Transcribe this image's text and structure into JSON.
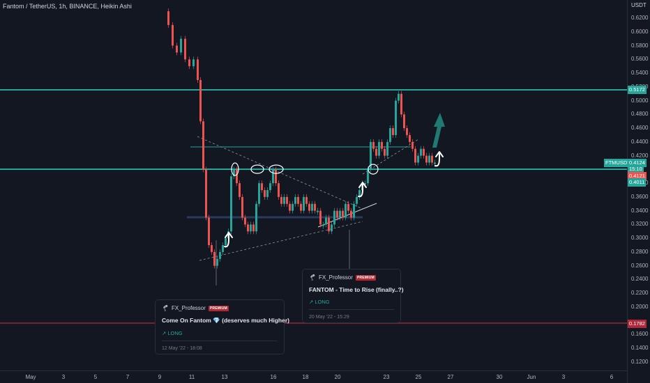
{
  "header": {
    "title": "Fantom / TetherUS, 1h, BINANCE, Heikin Ashi"
  },
  "price_scale": {
    "unit": "USDT",
    "ticks": [
      "0.6200",
      "0.6000",
      "0.5800",
      "0.5600",
      "0.5400",
      "0.5200",
      "0.5000",
      "0.4800",
      "0.4600",
      "0.4400",
      "0.4200",
      "0.3800",
      "0.3600",
      "0.3400",
      "0.3200",
      "0.3000",
      "0.2800",
      "0.2600",
      "0.2400",
      "0.2200",
      "0.2000",
      "0.1600",
      "0.1400",
      "0.1200"
    ]
  },
  "time_scale": {
    "ticks": [
      "May",
      "3",
      "5",
      "7",
      "9",
      "11",
      "13",
      "16",
      "18",
      "20",
      "23",
      "25",
      "27",
      "30",
      "Jun",
      "3",
      "6"
    ]
  },
  "badges": {
    "upper_level": "0.5172",
    "symbol": "FTMUSDT",
    "current_price": "0.4124",
    "countdown": "15:10",
    "lower_price": "0.4121",
    "lower_level": "0.4011",
    "support_level": "0.1782"
  },
  "colors": {
    "background": "#131722",
    "level_line": "#26a69a",
    "support_line": "#b2283a",
    "up_candle": "#26a69a",
    "down_candle": "#ef5350"
  },
  "ideas": [
    {
      "author": "FX_Professor",
      "badge": "PREMIUM",
      "title": "Come On Fantom 💎 (deserves much Higher)",
      "direction": "↗ LONG",
      "date": "12 May '22 - 18:08"
    },
    {
      "author": "FX_Professor",
      "badge": "PREMIUM",
      "title": "FANTOM - Time to Rise (finally..?)",
      "direction": "↗ LONG",
      "date": "20 May '22 - 15:29"
    }
  ]
}
